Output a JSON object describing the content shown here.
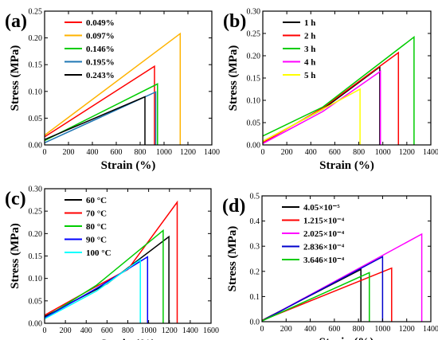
{
  "chart_data": [
    {
      "panel": "(a)",
      "type": "line",
      "xlabel": "Strain (%)",
      "ylabel": "Stress (MPa)",
      "xlim": [
        0,
        1400
      ],
      "ylim": [
        0,
        0.25
      ],
      "xticks": [
        0,
        200,
        400,
        600,
        800,
        1000,
        1200,
        1400
      ],
      "yticks": [
        0.0,
        0.05,
        0.1,
        0.15,
        0.2,
        0.25
      ],
      "ytick_decimals": 2,
      "legend_position": "top-left",
      "series": [
        {
          "name": "0.049%",
          "color": "#ff0000",
          "points": [
            [
              0,
              0.015
            ],
            [
              920,
              0.147
            ],
            [
              920,
              0
            ]
          ]
        },
        {
          "name": "0.097%",
          "color": "#ffb300",
          "points": [
            [
              0,
              0.018
            ],
            [
              1135,
              0.208
            ],
            [
              1135,
              0
            ]
          ]
        },
        {
          "name": "0.146%",
          "color": "#00cc00",
          "points": [
            [
              0,
              0.008
            ],
            [
              945,
              0.114
            ],
            [
              945,
              0
            ]
          ]
        },
        {
          "name": "0.195%",
          "color": "#1f77b4",
          "points": [
            [
              0,
              0.004
            ],
            [
              930,
              0.099
            ],
            [
              930,
              0
            ]
          ]
        },
        {
          "name": "0.243%",
          "color": "#000000",
          "points": [
            [
              0,
              0.01
            ],
            [
              840,
              0.09
            ],
            [
              840,
              0
            ]
          ]
        }
      ]
    },
    {
      "panel": "(b)",
      "type": "line",
      "xlabel": "Strain (%)",
      "ylabel": "Stress (MPa)",
      "xlim": [
        0,
        1400
      ],
      "ylim": [
        0,
        0.3
      ],
      "xticks": [
        0,
        200,
        400,
        600,
        800,
        1000,
        1200,
        1400
      ],
      "yticks": [
        0.0,
        0.05,
        0.1,
        0.15,
        0.2,
        0.25,
        0.3
      ],
      "ytick_decimals": 2,
      "legend_position": "top-left",
      "series": [
        {
          "name": "1 h",
          "color": "#000000",
          "points": [
            [
              0,
              0.008
            ],
            [
              500,
              0.08
            ],
            [
              975,
              0.175
            ],
            [
              975,
              0
            ]
          ]
        },
        {
          "name": "2 h",
          "color": "#ff0000",
          "points": [
            [
              0,
              0.005
            ],
            [
              500,
              0.083
            ],
            [
              1130,
              0.207
            ],
            [
              1130,
              0
            ]
          ]
        },
        {
          "name": "3 h",
          "color": "#00cc00",
          "points": [
            [
              0,
              0.02
            ],
            [
              500,
              0.085
            ],
            [
              1260,
              0.242
            ],
            [
              1260,
              0
            ]
          ]
        },
        {
          "name": "4 h",
          "color": "#ff00ff",
          "points": [
            [
              0,
              0.003
            ],
            [
              500,
              0.075
            ],
            [
              980,
              0.165
            ],
            [
              980,
              0
            ]
          ]
        },
        {
          "name": "5 h",
          "color": "#ffff00",
          "points": [
            [
              0,
              0.008
            ],
            [
              810,
              0.125
            ],
            [
              810,
              0
            ]
          ]
        }
      ]
    },
    {
      "panel": "(c)",
      "type": "line",
      "xlabel": "Strain (%)",
      "ylabel": "Stress (MPa)",
      "xlim": [
        0,
        1600
      ],
      "ylim": [
        0,
        0.3
      ],
      "xticks": [
        0,
        200,
        400,
        600,
        800,
        1000,
        1200,
        1400,
        1600
      ],
      "yticks": [
        0.0,
        0.05,
        0.1,
        0.15,
        0.2,
        0.25,
        0.3
      ],
      "ytick_decimals": 2,
      "legend_position": "top-left",
      "series": [
        {
          "name": "60 °C",
          "color": "#000000",
          "points": [
            [
              0,
              0.015
            ],
            [
              600,
              0.088
            ],
            [
              1195,
              0.193
            ],
            [
              1195,
              0
            ]
          ]
        },
        {
          "name": "70 °C",
          "color": "#ff0000",
          "points": [
            [
              0,
              0.018
            ],
            [
              400,
              0.07
            ],
            [
              800,
              0.12
            ],
            [
              1275,
              0.27
            ],
            [
              1275,
              0
            ]
          ]
        },
        {
          "name": "80 °C",
          "color": "#00cc00",
          "points": [
            [
              0,
              0.012
            ],
            [
              500,
              0.085
            ],
            [
              1140,
              0.207
            ],
            [
              1140,
              0
            ]
          ]
        },
        {
          "name": "90 °C",
          "color": "#0000ff",
          "points": [
            [
              0,
              0.012
            ],
            [
              500,
              0.078
            ],
            [
              990,
              0.148
            ],
            [
              990,
              0
            ]
          ]
        },
        {
          "name": "100 °C",
          "color": "#00ffff",
          "points": [
            [
              0,
              0.01
            ],
            [
              500,
              0.072
            ],
            [
              920,
              0.142
            ],
            [
              920,
              0
            ]
          ]
        }
      ]
    },
    {
      "panel": "(d)",
      "type": "line",
      "xlabel": "Strain (%)",
      "ylabel": "Stress (MPa)",
      "xlim": [
        0,
        1400
      ],
      "ylim": [
        0,
        0.5
      ],
      "xticks": [
        0,
        200,
        400,
        600,
        800,
        1000,
        1200,
        1400
      ],
      "yticks": [
        0.0,
        0.1,
        0.2,
        0.3,
        0.4,
        0.5
      ],
      "ytick_decimals": 1,
      "legend_position": "top-left",
      "series": [
        {
          "name": "4.05×10⁻⁵",
          "color": "#000000",
          "points": [
            [
              0,
              0.005
            ],
            [
              820,
              0.208
            ],
            [
              820,
              0
            ]
          ]
        },
        {
          "name": "1.215×10⁻⁴",
          "color": "#ff0000",
          "points": [
            [
              0,
              0.005
            ],
            [
              1075,
              0.213
            ],
            [
              1075,
              0
            ]
          ]
        },
        {
          "name": "2.025×10⁻⁴",
          "color": "#ff00ff",
          "points": [
            [
              0,
              0.003
            ],
            [
              1325,
              0.348
            ],
            [
              1325,
              0
            ]
          ]
        },
        {
          "name": "2.836×10⁻⁴",
          "color": "#0000cc",
          "points": [
            [
              0,
              0.003
            ],
            [
              1000,
              0.258
            ],
            [
              1000,
              0
            ]
          ]
        },
        {
          "name": "3.646×10⁻⁴",
          "color": "#00cc00",
          "points": [
            [
              0,
              0.003
            ],
            [
              890,
              0.195
            ],
            [
              890,
              0
            ]
          ]
        }
      ]
    }
  ]
}
